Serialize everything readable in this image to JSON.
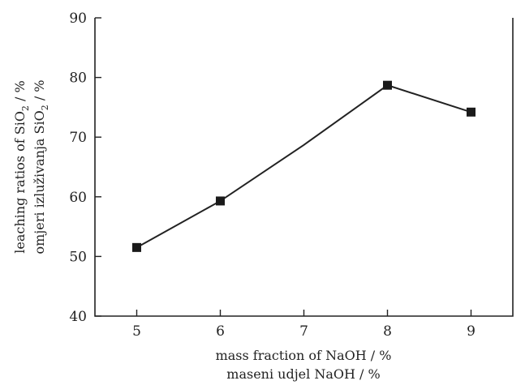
{
  "chart_data": {
    "type": "line",
    "x": [
      5,
      6,
      7,
      8,
      9
    ],
    "series": [
      {
        "values": [
          51.5,
          59.3,
          68.7,
          78.7,
          74.2
        ],
        "markers": [
          true,
          true,
          false,
          true,
          true
        ]
      }
    ],
    "xlabel": [
      "mass fraction of NaOH / %",
      "maseni udjel NaOH / %"
    ],
    "ylabel": [
      {
        "pre": "leaching ratios of SiO",
        "sub": "2",
        "post": " / %"
      },
      {
        "pre": "omjeri izluživanja SiO",
        "sub": "2",
        "post": " / %"
      }
    ],
    "xlim": [
      4.5,
      9.5
    ],
    "ylim": [
      40,
      90
    ],
    "xticks": [
      5,
      6,
      7,
      8,
      9
    ],
    "yticks": [
      40,
      50,
      60,
      70,
      80,
      90
    ],
    "grid": false,
    "marker_shape": "square",
    "colors": {
      "line": "#222222",
      "marker": "#1a1a1a"
    }
  }
}
